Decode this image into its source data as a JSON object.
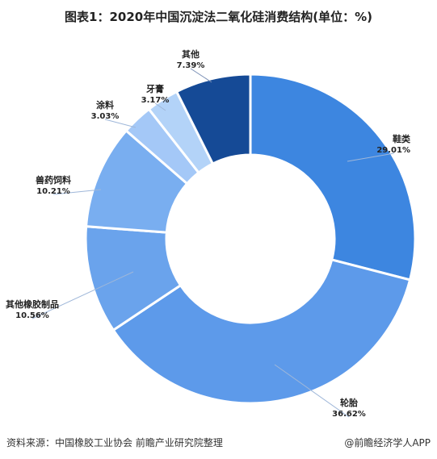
{
  "chart_data": {
    "type": "pie",
    "variant": "donut",
    "title": "图表1：2020年中国沉淀法二氧化硅消费结构(单位：%)",
    "categories": [
      "鞋类",
      "轮胎",
      "其他橡胶制品",
      "兽药饲料",
      "涂料",
      "牙膏",
      "其他"
    ],
    "values": [
      29.01,
      36.62,
      10.56,
      10.21,
      3.03,
      3.17,
      7.39
    ],
    "value_labels": [
      "29.01%",
      "36.62%",
      "10.56%",
      "10.21%",
      "3.03%",
      "3.17%",
      "7.39%"
    ],
    "colors": [
      "#3d86e0",
      "#5d9aea",
      "#6aa3ec",
      "#79aef0",
      "#a4c8f7",
      "#b3d3f8",
      "#154a96"
    ],
    "start_angle_deg": 0,
    "direction": "clockwise"
  },
  "source_text": "资料来源：中国橡胶工业协会 前瞻产业研究院整理",
  "brand_text": "@前瞻经济学人APP"
}
